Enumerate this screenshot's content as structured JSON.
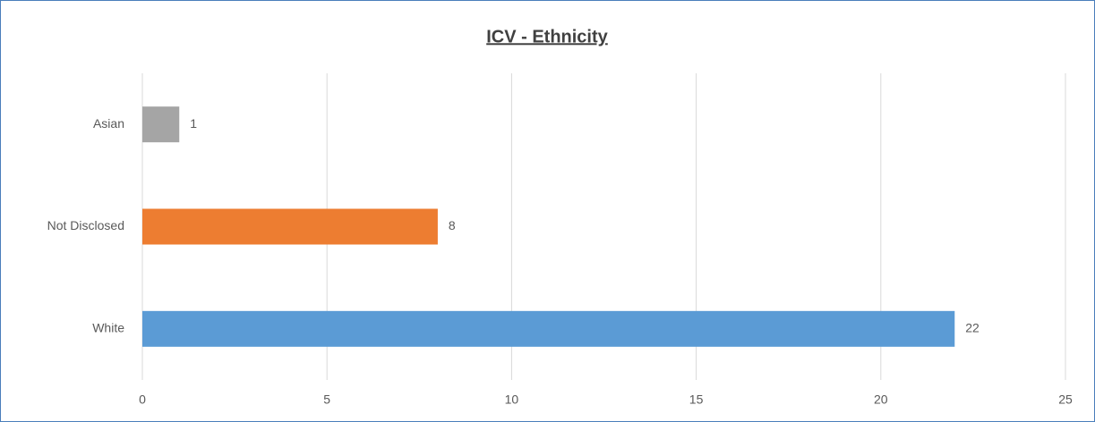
{
  "chart_data": {
    "type": "bar",
    "orientation": "horizontal",
    "title": "ICV - Ethnicity",
    "categories": [
      "Asian",
      "Not Disclosed",
      "White"
    ],
    "values": [
      1,
      8,
      22
    ],
    "colors": [
      "#a5a5a5",
      "#ed7d31",
      "#5b9bd5"
    ],
    "xlim": [
      0,
      25
    ],
    "xticks": [
      0,
      5,
      10,
      15,
      20,
      25
    ],
    "grid": true
  }
}
